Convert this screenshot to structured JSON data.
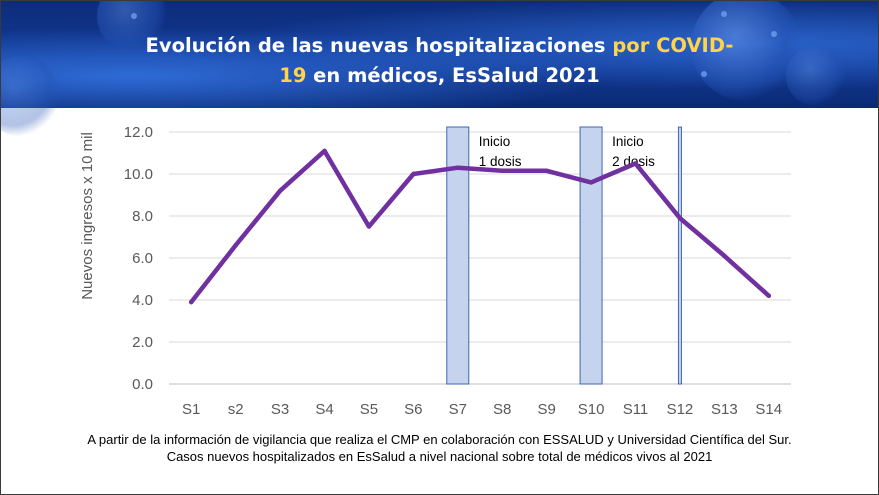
{
  "header": {
    "title_part1": "Evolución de las nuevas hospitalizaciones ",
    "title_highlight1": "por COVID-",
    "title_highlight2": "19",
    "title_part2": " en médicos, EsSalud 2021",
    "title_color": "#ffffff",
    "highlight_color": "#ffd44a"
  },
  "chart_data": {
    "type": "line",
    "title": "Evolución de las nuevas hospitalizaciones por COVID-19 en médicos, EsSalud 2021",
    "xlabel": "",
    "ylabel": "Nuevos ingresos x 10 mil",
    "ylim": [
      0,
      12
    ],
    "ytick_step": 2,
    "grid": true,
    "categories": [
      "S1",
      "s2",
      "S3",
      "S4",
      "S5",
      "S6",
      "S7",
      "S8",
      "S9",
      "S10",
      "S11",
      "S12",
      "S13",
      "S14"
    ],
    "series": [
      {
        "name": "Nuevos ingresos",
        "color": "#7030a0",
        "values": [
          3.9,
          6.6,
          9.2,
          11.1,
          7.5,
          10.0,
          10.3,
          10.15,
          10.15,
          9.6,
          10.5,
          7.9,
          6.1,
          4.2
        ]
      }
    ],
    "annotations": [
      {
        "label_line1": "Inicio",
        "label_line2": "1 dosis",
        "at_category": "S7"
      },
      {
        "label_line1": "Inicio",
        "label_line2": "2 dosis",
        "at_category": "S10"
      },
      {
        "label_line1": "",
        "label_line2": "",
        "at_category": "S12"
      }
    ],
    "marker_fill": "#c5d3ee",
    "marker_stroke": "#3f67b0"
  },
  "footnote": {
    "line1": "A partir de la información de vigilancia que realiza el CMP en colaboración con ESSALUD y Universidad Científica del Sur.",
    "line2": "Casos nuevos hospitalizados en EsSalud a nivel nacional sobre total de médicos vivos al 2021"
  }
}
